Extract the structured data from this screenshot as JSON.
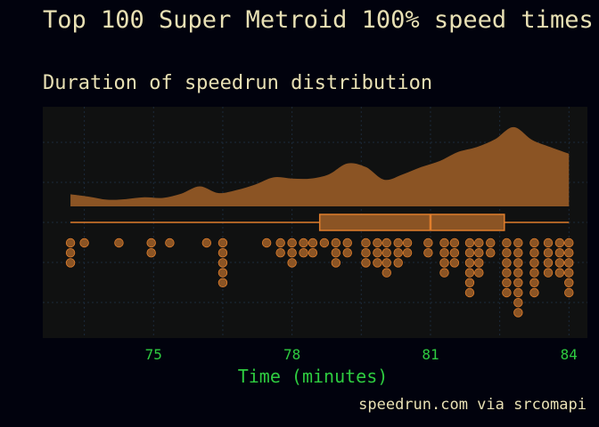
{
  "title": "Top 100 Super Metroid 100% speed times",
  "subtitle": "Duration of speedrun distribution",
  "caption": "speedrun.com via srcomapi",
  "colors": {
    "background": "#01020d",
    "panel": "#101111",
    "fill": "#8b5424",
    "stroke": "#e07e2c",
    "text": "#e8e0b4",
    "axis_text": "#2ecc40"
  },
  "chart_data": {
    "type": "raincloud",
    "xlabel": "Time (minutes)",
    "xlim": [
      72.6,
      84.4
    ],
    "xticks": [
      75,
      78,
      81,
      84
    ],
    "grid": true,
    "boxplot": {
      "min": 73.2,
      "q1": 78.6,
      "median": 81.0,
      "q3": 82.6,
      "max": 84.0
    },
    "density": {
      "x": [
        73.2,
        73.6,
        74.0,
        74.4,
        74.8,
        75.2,
        75.6,
        76.0,
        76.4,
        76.8,
        77.2,
        77.6,
        78.0,
        78.4,
        78.8,
        79.2,
        79.6,
        80.0,
        80.4,
        80.8,
        81.2,
        81.6,
        82.0,
        82.4,
        82.8,
        83.2,
        83.6,
        84.0
      ],
      "y": [
        0.2,
        0.16,
        0.11,
        0.12,
        0.15,
        0.14,
        0.21,
        0.33,
        0.22,
        0.27,
        0.36,
        0.48,
        0.46,
        0.46,
        0.53,
        0.71,
        0.65,
        0.44,
        0.53,
        0.65,
        0.75,
        0.9,
        0.98,
        1.11,
        1.31,
        1.1,
        0.98,
        0.87
      ]
    },
    "dots": [
      {
        "x": 73.2,
        "count": 3
      },
      {
        "x": 73.5,
        "count": 1
      },
      {
        "x": 74.25,
        "count": 1
      },
      {
        "x": 74.95,
        "count": 2
      },
      {
        "x": 75.35,
        "count": 1
      },
      {
        "x": 76.15,
        "count": 1
      },
      {
        "x": 76.5,
        "count": 5
      },
      {
        "x": 77.45,
        "count": 1
      },
      {
        "x": 77.75,
        "count": 2
      },
      {
        "x": 78.0,
        "count": 3
      },
      {
        "x": 78.25,
        "count": 2
      },
      {
        "x": 78.45,
        "count": 2
      },
      {
        "x": 78.7,
        "count": 1
      },
      {
        "x": 78.95,
        "count": 3
      },
      {
        "x": 79.2,
        "count": 2
      },
      {
        "x": 79.6,
        "count": 3
      },
      {
        "x": 79.85,
        "count": 3
      },
      {
        "x": 80.05,
        "count": 4
      },
      {
        "x": 80.3,
        "count": 3
      },
      {
        "x": 80.5,
        "count": 2
      },
      {
        "x": 80.95,
        "count": 2
      },
      {
        "x": 81.3,
        "count": 4
      },
      {
        "x": 81.52,
        "count": 3
      },
      {
        "x": 81.85,
        "count": 6
      },
      {
        "x": 82.05,
        "count": 4
      },
      {
        "x": 82.3,
        "count": 2
      },
      {
        "x": 82.65,
        "count": 6
      },
      {
        "x": 82.9,
        "count": 8
      },
      {
        "x": 83.25,
        "count": 6
      },
      {
        "x": 83.55,
        "count": 4
      },
      {
        "x": 83.8,
        "count": 4
      },
      {
        "x": 84.0,
        "count": 6
      }
    ]
  }
}
